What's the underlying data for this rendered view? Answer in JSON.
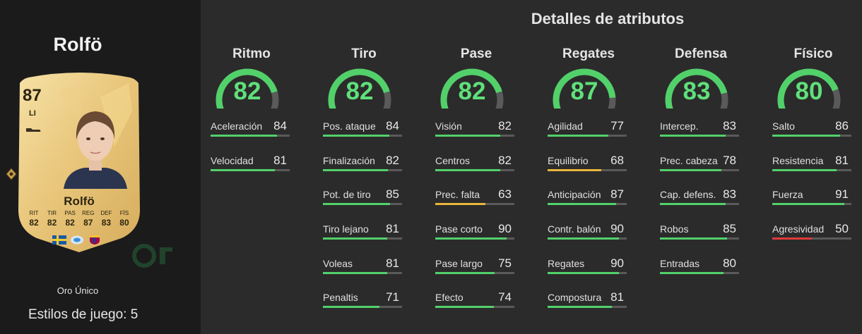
{
  "player": {
    "name": "Rolfö",
    "card_name": "Rolfö",
    "rating": "87",
    "position": "LI",
    "card_type": "Oro Único",
    "styles_label": "Estilos de juego: 5",
    "card_stats": [
      {
        "label": "RIT",
        "value": "82"
      },
      {
        "label": "TIR",
        "value": "82"
      },
      {
        "label": "PAS",
        "value": "82"
      },
      {
        "label": "REG",
        "value": "87"
      },
      {
        "label": "DEF",
        "value": "83"
      },
      {
        "label": "FÍS",
        "value": "80"
      }
    ]
  },
  "title": "Detalles de atributos",
  "colors": {
    "high": "#52d16a",
    "mid": "#e8b53c",
    "low": "#e03a3a",
    "track": "#5a5a5a"
  },
  "categories": [
    {
      "name": "Ritmo",
      "value": "82",
      "stats": [
        {
          "name": "Aceleración",
          "value": "84"
        },
        {
          "name": "Velocidad",
          "value": "81"
        }
      ]
    },
    {
      "name": "Tiro",
      "value": "82",
      "stats": [
        {
          "name": "Pos. ataque",
          "value": "84"
        },
        {
          "name": "Finalización",
          "value": "82"
        },
        {
          "name": "Pot. de tiro",
          "value": "85"
        },
        {
          "name": "Tiro lejano",
          "value": "81"
        },
        {
          "name": "Voleas",
          "value": "81"
        },
        {
          "name": "Penaltis",
          "value": "71"
        }
      ]
    },
    {
      "name": "Pase",
      "value": "82",
      "stats": [
        {
          "name": "Visión",
          "value": "82"
        },
        {
          "name": "Centros",
          "value": "82"
        },
        {
          "name": "Prec. falta",
          "value": "63"
        },
        {
          "name": "Pase corto",
          "value": "90"
        },
        {
          "name": "Pase largo",
          "value": "75"
        },
        {
          "name": "Efecto",
          "value": "74"
        }
      ]
    },
    {
      "name": "Regates",
      "value": "87",
      "stats": [
        {
          "name": "Agilidad",
          "value": "77"
        },
        {
          "name": "Equilibrio",
          "value": "68"
        },
        {
          "name": "Anticipación",
          "value": "87"
        },
        {
          "name": "Contr. balón",
          "value": "90"
        },
        {
          "name": "Regates",
          "value": "90"
        },
        {
          "name": "Compostura",
          "value": "81"
        }
      ]
    },
    {
      "name": "Defensa",
      "value": "83",
      "stats": [
        {
          "name": "Intercep.",
          "value": "83"
        },
        {
          "name": "Prec. cabeza",
          "value": "78"
        },
        {
          "name": "Cap. defens.",
          "value": "83"
        },
        {
          "name": "Robos",
          "value": "85"
        },
        {
          "name": "Entradas",
          "value": "80"
        }
      ]
    },
    {
      "name": "Físico",
      "value": "80",
      "stats": [
        {
          "name": "Salto",
          "value": "86"
        },
        {
          "name": "Resistencia",
          "value": "81"
        },
        {
          "name": "Fuerza",
          "value": "91"
        },
        {
          "name": "Agresividad",
          "value": "50"
        }
      ]
    }
  ]
}
